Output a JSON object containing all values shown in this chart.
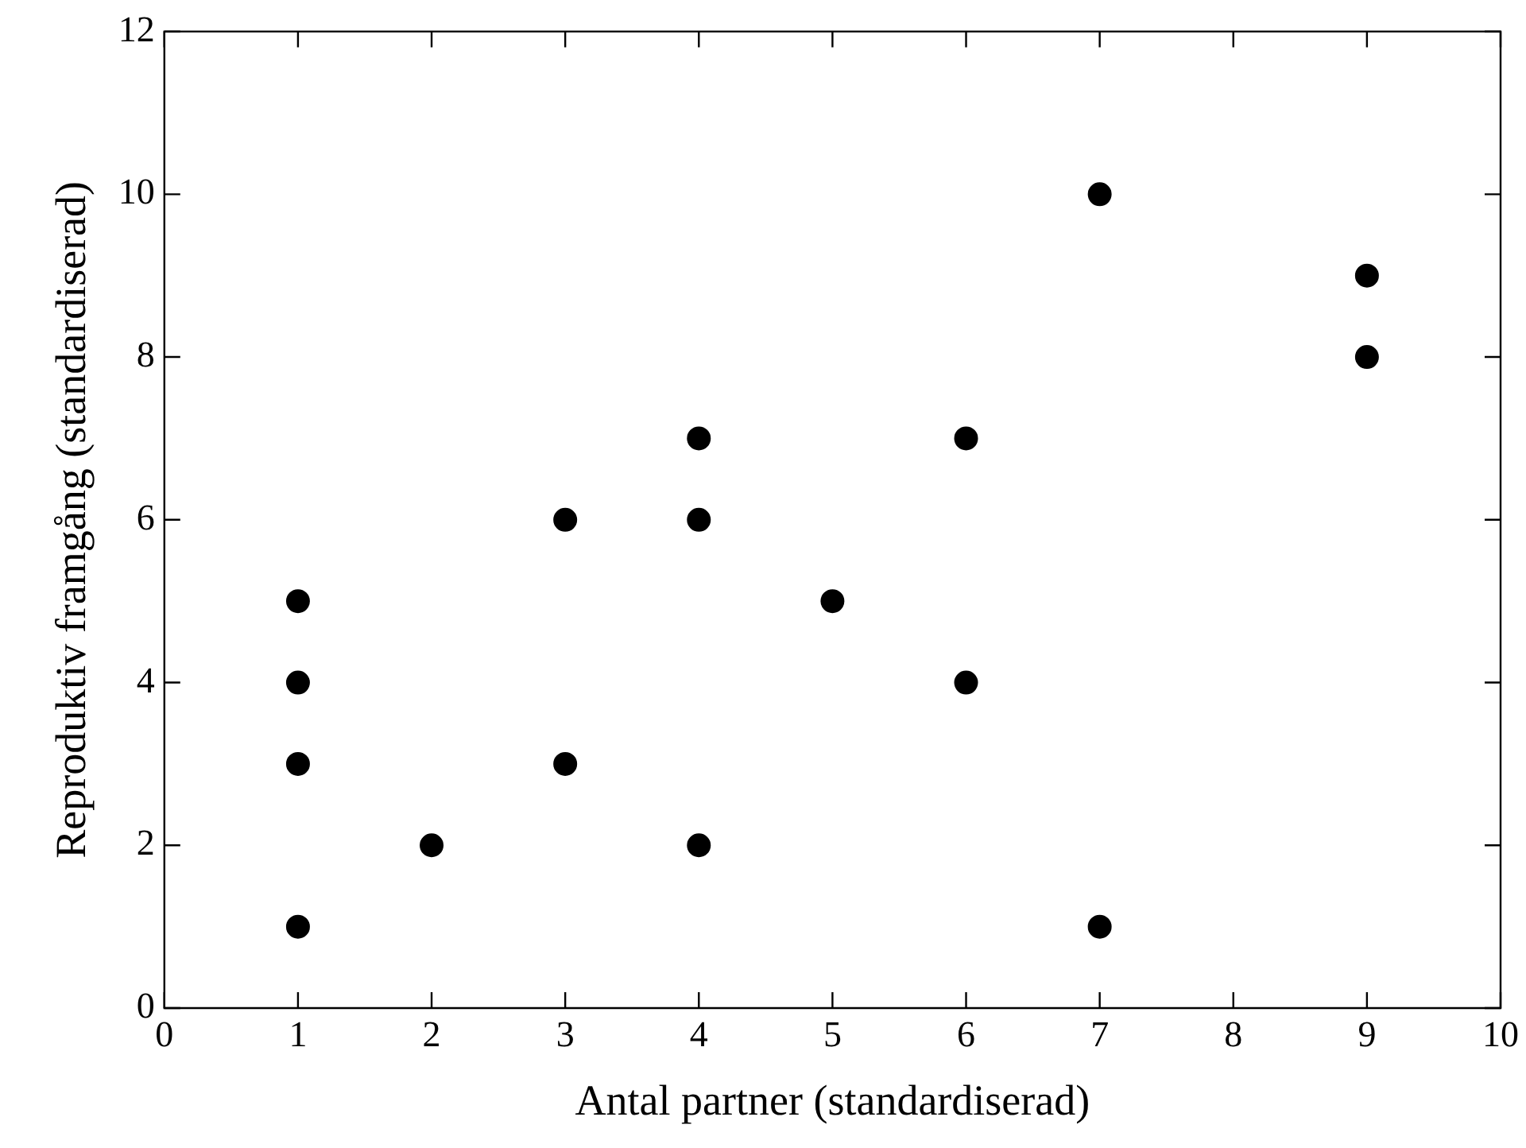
{
  "chart_data": {
    "type": "scatter",
    "xlabel": "Antal partner (standardiserad)",
    "ylabel": "Reproduktiv framgång (standardiserad)",
    "x": [
      1,
      1,
      1,
      1,
      2,
      3,
      3,
      4,
      4,
      4,
      5,
      6,
      6,
      7,
      7,
      9,
      9
    ],
    "values": [
      5,
      4,
      3,
      1,
      2,
      6,
      3,
      7,
      6,
      2,
      5,
      7,
      4,
      10,
      1,
      9,
      8
    ],
    "color": "#000000",
    "marker": "circle",
    "grid": false,
    "legend": false,
    "xlim": [
      0,
      10
    ],
    "xticks": [
      0,
      1,
      2,
      3,
      4,
      5,
      6,
      7,
      8,
      9,
      10
    ],
    "ylim": [
      0,
      12
    ],
    "yticks": [
      0,
      2,
      4,
      6,
      8,
      10,
      12
    ]
  }
}
